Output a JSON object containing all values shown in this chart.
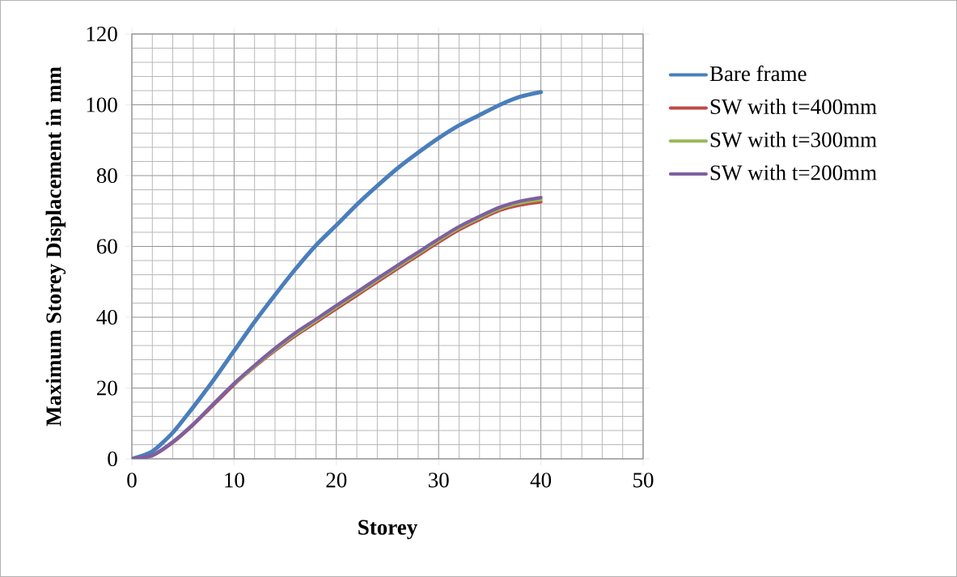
{
  "chart_data": {
    "type": "line",
    "xlabel": "Storey",
    "ylabel": "Maximum Storey Displacement in mm",
    "xlim": [
      0,
      50
    ],
    "xticks": [
      0,
      10,
      20,
      30,
      40,
      50
    ],
    "ylim": [
      0,
      120
    ],
    "yticks": [
      0,
      20,
      40,
      60,
      80,
      100,
      120
    ],
    "grid": true,
    "legend": "right",
    "marker": "none",
    "line_style": "solid",
    "x": [
      0,
      2,
      4,
      6,
      8,
      10,
      12,
      14,
      16,
      18,
      20,
      22,
      24,
      26,
      28,
      30,
      32,
      34,
      36,
      38,
      40
    ],
    "series": [
      {
        "name": "Bare frame",
        "color": "#4a7ebb",
        "values": [
          0,
          2.1,
          7.4,
          14.6,
          22.3,
          30.5,
          38.7,
          46.3,
          53.6,
          60.3,
          66,
          71.8,
          77.1,
          82.1,
          86.5,
          90.6,
          94.2,
          97.1,
          100,
          102.3,
          103.6
        ]
      },
      {
        "name": "SW  with t=400mm",
        "color": "#be4b48",
        "values": [
          0,
          0.9,
          4.6,
          9.6,
          15.3,
          21,
          26,
          30.6,
          34.8,
          38.6,
          42.4,
          46.2,
          50,
          53.8,
          57.5,
          61.2,
          64.7,
          67.6,
          70.2,
          71.7,
          72.6
        ]
      },
      {
        "name": "SW  with t=300mm",
        "color": "#98b954",
        "values": [
          null,
          null,
          null,
          null,
          null,
          21.2,
          26.2,
          30.9,
          35.2,
          39,
          42.9,
          46.7,
          50.5,
          54.3,
          58,
          61.7,
          65.2,
          68.1,
          70.7,
          72.3,
          73.2
        ]
      },
      {
        "name": "SW  with t=200mm",
        "color": "#7d60a0",
        "values": [
          0,
          1,
          4.8,
          9.8,
          15.6,
          21.3,
          26.4,
          31.2,
          35.6,
          39.4,
          43.3,
          47.1,
          50.9,
          54.7,
          58.4,
          62.1,
          65.6,
          68.5,
          71.1,
          72.8,
          73.8
        ]
      }
    ]
  }
}
